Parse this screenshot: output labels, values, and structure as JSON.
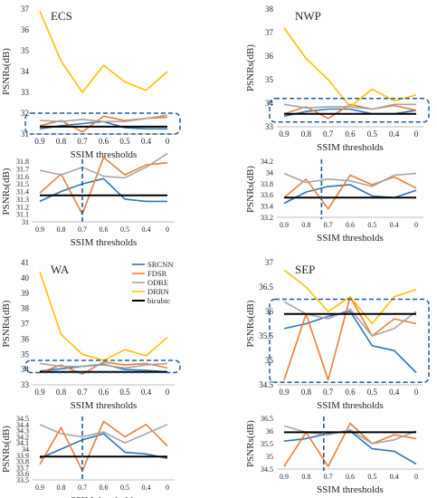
{
  "figure": {
    "x_title": "SSIM thresholds",
    "y_title": "PSNRs(dB)",
    "legend": [
      "SRCNN",
      "FDSR",
      "ODRE",
      "DRRN",
      "bicubic"
    ]
  },
  "colors": {
    "SRCNN": "#2e75b6",
    "FDSR": "#ed7d31",
    "ODRE": "#a5a5a5",
    "DRRN": "#ffc000",
    "bicubic": "#000000",
    "highlight": "#1f5a96"
  },
  "chart_data": [
    {
      "type": "line",
      "title": "ECS",
      "view": "full",
      "categories": [
        "0.9",
        "0.8",
        "0.7",
        "0.6",
        "0.5",
        "0.4",
        "0"
      ],
      "xlabel": "SSIM thresholds",
      "ylabel": "PSNRs(dB)",
      "ylim": [
        31,
        37
      ],
      "yticks": [
        "31",
        "32",
        "33",
        "34",
        "35",
        "36",
        "37"
      ],
      "highlight_box": [
        31.0,
        32.0
      ],
      "series": [
        {
          "name": "SRCNN",
          "values": [
            31.25,
            31.4,
            31.5,
            31.6,
            31.3,
            31.25,
            31.25
          ]
        },
        {
          "name": "FDSR",
          "values": [
            31.4,
            31.65,
            31.1,
            31.85,
            31.65,
            31.75,
            31.8
          ]
        },
        {
          "name": "ODRE",
          "values": [
            31.65,
            31.6,
            31.7,
            31.6,
            31.6,
            31.75,
            31.9
          ]
        },
        {
          "name": "DRRN",
          "values": [
            36.9,
            34.5,
            33.0,
            34.3,
            33.5,
            33.1,
            34.0
          ]
        },
        {
          "name": "bicubic",
          "values": [
            31.35,
            31.35,
            31.35,
            31.35,
            31.35,
            31.35,
            31.35
          ]
        }
      ]
    },
    {
      "type": "line",
      "title": "",
      "view": "zoom",
      "categories": [
        "0.9",
        "0.8",
        "0.7",
        "0.6",
        "0.5",
        "0.4",
        "0"
      ],
      "xlabel": "SSIM thresholds",
      "ylabel": "PSNRs(dB)",
      "ylim": [
        31,
        31.8
      ],
      "yticks": [
        "31",
        "31.1",
        "31.2",
        "31.3",
        "31.4",
        "31.5",
        "31.6",
        "31.7",
        "31.8"
      ],
      "threshold_marker": 2.0,
      "series": [
        {
          "name": "SRCNN",
          "values": [
            31.27,
            31.4,
            31.5,
            31.57,
            31.3,
            31.27,
            31.27
          ]
        },
        {
          "name": "FDSR",
          "values": [
            31.38,
            31.63,
            31.1,
            31.85,
            31.62,
            31.75,
            31.78
          ]
        },
        {
          "name": "ODRE",
          "values": [
            31.68,
            31.62,
            31.72,
            31.6,
            31.58,
            31.72,
            31.9
          ]
        },
        {
          "name": "bicubic",
          "values": [
            31.35,
            31.35,
            31.35,
            31.35,
            31.35,
            31.35,
            31.35
          ]
        }
      ]
    },
    {
      "type": "line",
      "title": "NWP",
      "view": "full",
      "categories": [
        "0.9",
        "0.8",
        "0.7",
        "0.6",
        "0.5",
        "0.4",
        "0"
      ],
      "xlabel": "SSIM thresholds",
      "ylabel": "PSNRs(dB)",
      "ylim": [
        33,
        38
      ],
      "yticks": [
        "33",
        "34",
        "35",
        "36",
        "37",
        "38"
      ],
      "highlight_box": [
        33.2,
        34.2
      ],
      "series": [
        {
          "name": "SRCNN",
          "values": [
            33.45,
            33.65,
            33.75,
            33.75,
            33.55,
            33.55,
            33.7
          ]
        },
        {
          "name": "FDSR",
          "values": [
            33.55,
            33.85,
            33.35,
            33.95,
            33.75,
            33.9,
            33.7
          ]
        },
        {
          "name": "ODRE",
          "values": [
            33.95,
            33.8,
            33.85,
            33.85,
            33.75,
            33.95,
            33.95
          ]
        },
        {
          "name": "DRRN",
          "values": [
            37.2,
            35.9,
            35.0,
            33.85,
            34.6,
            34.1,
            34.35
          ]
        },
        {
          "name": "bicubic",
          "values": [
            33.55,
            33.55,
            33.55,
            33.55,
            33.55,
            33.55,
            33.55
          ]
        }
      ]
    },
    {
      "type": "line",
      "title": "",
      "view": "zoom",
      "categories": [
        "0.9",
        "0.8",
        "0.7",
        "0.6",
        "0.5",
        "0.4",
        "0"
      ],
      "xlabel": "SSIM thresholds",
      "ylabel": "PSNRs(dB)",
      "ylim": [
        33.2,
        34.2
      ],
      "yticks": [
        "33.2",
        "33.4",
        "33.6",
        "33.8",
        "34",
        "34.2"
      ],
      "threshold_marker": 1.7,
      "series": [
        {
          "name": "SRCNN",
          "values": [
            33.45,
            33.65,
            33.75,
            33.78,
            33.58,
            33.55,
            33.68
          ]
        },
        {
          "name": "FDSR",
          "values": [
            33.55,
            33.88,
            33.35,
            33.95,
            33.78,
            33.92,
            33.72
          ]
        },
        {
          "name": "ODRE",
          "values": [
            33.98,
            33.82,
            33.88,
            33.85,
            33.75,
            33.95,
            33.98
          ]
        },
        {
          "name": "bicubic",
          "values": [
            33.55,
            33.55,
            33.55,
            33.55,
            33.55,
            33.55,
            33.55
          ]
        }
      ]
    },
    {
      "type": "line",
      "title": "WA",
      "view": "full",
      "categories": [
        "0.9",
        "0.8",
        "0.7",
        "0.6",
        "0.5",
        "0.4",
        "0"
      ],
      "xlabel": "SSIM thresholds",
      "ylabel": "PSNRs(dB)",
      "ylim": [
        33,
        41
      ],
      "yticks": [
        "33",
        "34",
        "35",
        "36",
        "37",
        "38",
        "39",
        "40",
        "41"
      ],
      "highlight_box": [
        33.8,
        34.6
      ],
      "legend_position": "top-right",
      "series": [
        {
          "name": "SRCNN",
          "values": [
            33.9,
            34.05,
            34.2,
            34.35,
            34.0,
            33.95,
            33.85
          ]
        },
        {
          "name": "FDSR",
          "values": [
            33.8,
            34.3,
            33.7,
            34.5,
            34.3,
            34.4,
            34.1
          ]
        },
        {
          "name": "ODRE",
          "values": [
            34.4,
            34.2,
            34.2,
            34.3,
            34.1,
            34.3,
            34.4
          ]
        },
        {
          "name": "DRRN",
          "values": [
            40.4,
            36.3,
            35.0,
            34.6,
            35.3,
            34.9,
            36.1
          ]
        },
        {
          "name": "bicubic",
          "values": [
            33.85,
            33.85,
            33.85,
            33.85,
            33.85,
            33.85,
            33.85
          ]
        }
      ]
    },
    {
      "type": "line",
      "title": "",
      "view": "zoom",
      "categories": [
        "0.9",
        "0.8",
        "0.7",
        "0.6",
        "0.5",
        "0.4",
        "0"
      ],
      "xlabel": "SSIM thresholds",
      "ylabel": "PSNRs(dB)",
      "ylim": [
        33.5,
        34.5
      ],
      "yticks": [
        "33.5",
        "33.6",
        "33.7",
        "33.8",
        "33.9",
        "34",
        "34.1",
        "34.2",
        "34.3",
        "34.4",
        "34.5"
      ],
      "threshold_marker": 2.0,
      "series": [
        {
          "name": "SRCNN",
          "values": [
            33.85,
            34.0,
            34.15,
            34.25,
            33.95,
            33.92,
            33.85
          ]
        },
        {
          "name": "FDSR",
          "values": [
            33.75,
            34.35,
            33.65,
            34.45,
            34.2,
            34.4,
            34.05
          ]
        },
        {
          "name": "ODRE",
          "values": [
            34.4,
            34.25,
            34.2,
            34.28,
            34.1,
            34.25,
            34.4
          ]
        },
        {
          "name": "bicubic",
          "values": [
            33.88,
            33.88,
            33.88,
            33.88,
            33.88,
            33.88,
            33.88
          ]
        }
      ]
    },
    {
      "type": "line",
      "title": "SEP",
      "view": "full",
      "categories": [
        "0.9",
        "0.8",
        "0.7",
        "0.6",
        "0.5",
        "0.4",
        "0"
      ],
      "xlabel": "SSIM thresholds",
      "ylabel": "PSNRs(dB)",
      "ylim": [
        34.5,
        37
      ],
      "yticks": [
        "34.5",
        "35",
        "35.5",
        "36",
        "36.5",
        "37"
      ],
      "highlight_box": [
        34.55,
        36.25
      ],
      "series": [
        {
          "name": "SRCNN",
          "values": [
            35.65,
            35.75,
            35.9,
            36.0,
            35.3,
            35.2,
            34.75
          ]
        },
        {
          "name": "FDSR",
          "values": [
            34.6,
            35.95,
            34.6,
            36.3,
            35.5,
            35.85,
            35.75
          ]
        },
        {
          "name": "ODRE",
          "values": [
            36.2,
            35.95,
            35.85,
            36.05,
            35.5,
            35.65,
            36.0
          ]
        },
        {
          "name": "DRRN",
          "values": [
            36.85,
            36.5,
            36.0,
            36.3,
            35.75,
            36.3,
            36.45
          ]
        },
        {
          "name": "bicubic",
          "values": [
            35.95,
            35.95,
            35.95,
            35.95,
            35.95,
            35.95,
            35.95
          ]
        }
      ]
    },
    {
      "type": "line",
      "title": "",
      "view": "zoom",
      "categories": [
        "0.9",
        "0.8",
        "0.7",
        "0.6",
        "0.5",
        "0.4",
        "0"
      ],
      "xlabel": "SSIM thresholds",
      "ylabel": "PSNRs(dB)",
      "ylim": [
        34.5,
        36.5
      ],
      "yticks": [
        "34.5",
        "35",
        "35.5",
        "36",
        "36.5"
      ],
      "threshold_marker": 1.8,
      "series": [
        {
          "name": "SRCNN",
          "values": [
            35.6,
            35.7,
            35.9,
            36.0,
            35.3,
            35.2,
            34.7
          ]
        },
        {
          "name": "FDSR",
          "values": [
            34.6,
            35.95,
            34.6,
            36.3,
            35.5,
            35.85,
            35.7
          ]
        },
        {
          "name": "ODRE",
          "values": [
            36.2,
            35.95,
            35.85,
            36.05,
            35.5,
            35.65,
            36.0
          ]
        },
        {
          "name": "bicubic",
          "values": [
            35.95,
            35.95,
            35.95,
            35.95,
            35.95,
            35.95,
            35.95
          ]
        }
      ]
    }
  ]
}
